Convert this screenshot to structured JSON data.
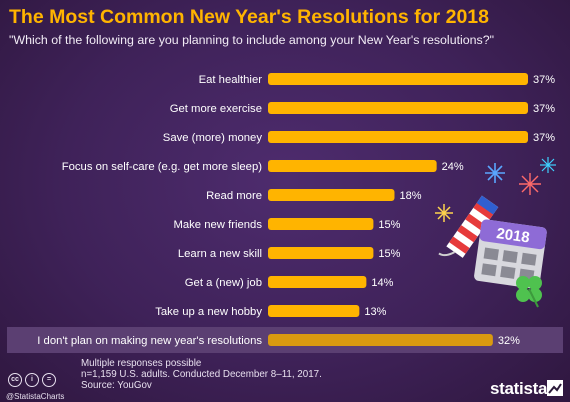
{
  "header": {
    "title": "The Most Common New Year's Resolutions for 2018",
    "subtitle": "\"Which of the following are you planning to include among your New Year's resolutions?\""
  },
  "chart_data": {
    "type": "bar",
    "orientation": "horizontal",
    "title": "The Most Common New Year's Resolutions for 2018",
    "subtitle": "\"Which of the following are you planning to include among your New Year's resolutions?\"",
    "unit": "%",
    "xlim": [
      0,
      40
    ],
    "grid": false,
    "categories": [
      "Eat healthier",
      "Get more exercise",
      "Save (more) money",
      "Focus on self-care (e.g. get more sleep)",
      "Read more",
      "Make new friends",
      "Learn a new skill",
      "Get a (new) job",
      "Take up a new hobby",
      "I don't plan on making new year's resolutions"
    ],
    "values": [
      37,
      37,
      37,
      24,
      18,
      15,
      15,
      14,
      13,
      32
    ],
    "value_labels": [
      "37%",
      "37%",
      "37%",
      "24%",
      "18%",
      "15%",
      "15%",
      "14%",
      "13%",
      "32%"
    ],
    "highlighted_category": "I don't plan on making new year's resolutions",
    "colors": {
      "bar": "#ffb400",
      "highlight_bar": "#d99a10",
      "highlight_row": "#5b3f72",
      "title": "#ffb400"
    }
  },
  "decoration": {
    "calendar_label": "2018",
    "icons": [
      "firework-icon",
      "firecracker-icon",
      "calendar-icon",
      "clover-icon"
    ]
  },
  "footer": {
    "note_line1": "Multiple responses possible",
    "note_line2": "n=1,159 U.S. adults. Conducted December 8–11, 2017.",
    "source": "Source: YouGov",
    "handle": "@StatistaCharts",
    "brand": "statista",
    "cc_labels": [
      "cc",
      "i",
      "="
    ]
  }
}
